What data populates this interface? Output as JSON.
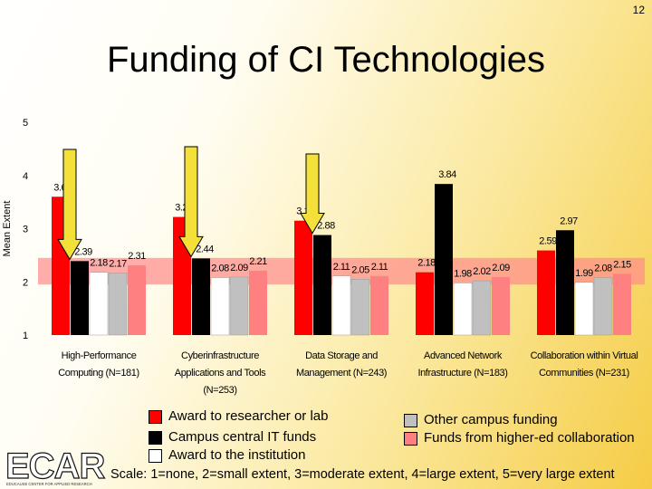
{
  "slide_number": "12",
  "title": "Funding of CI Technologies",
  "scale_note": "Scale: 1=none, 2=small extent, 3=moderate extent, 4=large extent, 5=very large extent",
  "logo": {
    "text": "ECAR",
    "subtext": "EDUCAUSE CENTER FOR APPLIED RESEARCH"
  },
  "colors": {
    "red": "#ff0000",
    "black": "#000000",
    "white": "#ffffff",
    "gray": "#c0c0c0",
    "pink": "#ff8080",
    "band": "#ff8a8a",
    "arrow": "#f3e13a"
  },
  "chart_data": {
    "type": "bar",
    "ylabel": "Mean Extent",
    "ylim": [
      1,
      5
    ],
    "yticks": [
      "1",
      "2",
      "3",
      "4",
      "5"
    ],
    "highlight_band": [
      1.95,
      2.45
    ],
    "categories": [
      [
        "High-Performance",
        "Computing (N=181)"
      ],
      [
        "Cyberinfrastructure",
        "Applications and Tools",
        "(N=253)"
      ],
      [
        "Data Storage and",
        "Management (N=243)"
      ],
      [
        "Advanced Network",
        "Infrastructure (N=183)"
      ],
      [
        "Collaboration within Virtual",
        "Communities (N=231)"
      ]
    ],
    "arrow_categories": [
      0,
      1,
      2
    ],
    "series": [
      {
        "name": "Award to researcher or lab",
        "color": "#ff0000",
        "values": [
          3.6,
          3.22,
          3.15,
          2.18,
          2.59
        ],
        "labels": [
          "3.60",
          "3.22",
          "3.15",
          "2.18",
          "2.59"
        ]
      },
      {
        "name": "Campus central IT funds",
        "color": "#000000",
        "values": [
          2.39,
          2.44,
          2.88,
          3.84,
          2.97
        ],
        "labels": [
          "2.39",
          "2.44",
          "2.88",
          "3.84",
          "2.97"
        ]
      },
      {
        "name": "Award to the institution",
        "color": "#ffffff",
        "values": [
          2.18,
          2.08,
          2.11,
          1.98,
          1.99
        ],
        "labels": [
          "2.18",
          "2.08",
          "2.11",
          "1.98",
          "1.99"
        ]
      },
      {
        "name": "Other campus funding",
        "color": "#c0c0c0",
        "values": [
          2.17,
          2.09,
          2.05,
          2.02,
          2.08
        ],
        "labels": [
          "2.17",
          "2.09",
          "2.05",
          "2.02",
          "2.08"
        ]
      },
      {
        "name": "Funds from higher-ed collaboration",
        "color": "#ff8080",
        "values": [
          2.31,
          2.21,
          2.11,
          2.09,
          2.15
        ],
        "labels": [
          "2.31",
          "2.21",
          "2.11",
          "2.09",
          "2.15"
        ]
      }
    ]
  }
}
